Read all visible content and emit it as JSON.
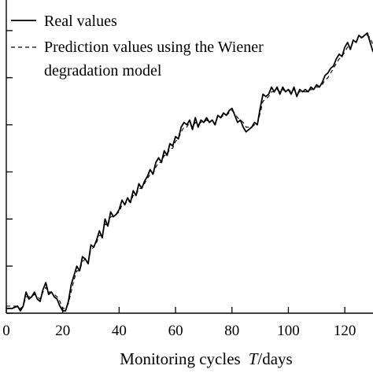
{
  "chart_data": {
    "type": "line",
    "title": "",
    "xlabel_prefix": "Monitoring cycles",
    "xlabel_var": "T",
    "xlabel_suffix": "/days",
    "ylabel": "",
    "xlim": [
      0,
      130
    ],
    "ylim": [
      0,
      0.133
    ],
    "x_ticks": [
      0,
      20,
      40,
      60,
      80,
      100,
      120
    ],
    "y_tick_values": [
      0,
      0.02,
      0.04,
      0.06,
      0.08,
      0.1,
      0.12
    ],
    "grid": false,
    "legend": "top-left",
    "series": [
      {
        "name": "Real values",
        "style": "solid",
        "x": [
          0,
          2,
          4,
          5,
          6,
          7,
          8,
          9,
          10,
          11,
          12,
          13,
          14,
          15,
          16,
          17,
          18,
          19,
          20,
          21,
          22,
          23,
          24,
          25,
          26,
          27,
          28,
          29,
          30,
          31,
          32,
          33,
          34,
          35,
          36,
          37,
          38,
          39,
          40,
          41,
          42,
          43,
          44,
          45,
          46,
          47,
          48,
          49,
          50,
          51,
          52,
          53,
          54,
          55,
          56,
          57,
          58,
          59,
          60,
          61,
          62,
          63,
          64,
          65,
          66,
          67,
          68,
          69,
          70,
          71,
          72,
          73,
          74,
          75,
          76,
          77,
          78,
          79,
          80,
          81,
          82,
          83,
          84,
          85,
          86,
          87,
          88,
          89,
          90,
          91,
          92,
          93,
          94,
          95,
          96,
          97,
          98,
          99,
          100,
          101,
          102,
          103,
          104,
          105,
          106,
          107,
          108,
          109,
          110,
          111,
          112,
          113,
          114,
          115,
          116,
          117,
          118,
          119,
          120,
          121,
          122,
          123,
          124,
          125,
          126,
          127,
          128,
          129,
          130
        ],
        "values": [
          0.002,
          0.002,
          0.003,
          0.001,
          0.003,
          0.009,
          0.006,
          0.007,
          0.009,
          0.006,
          0.005,
          0.01,
          0.013,
          0.008,
          0.009,
          0.007,
          0.006,
          0.003,
          0.001,
          0.001,
          0.005,
          0.012,
          0.016,
          0.02,
          0.018,
          0.024,
          0.023,
          0.021,
          0.029,
          0.028,
          0.031,
          0.035,
          0.032,
          0.04,
          0.037,
          0.043,
          0.041,
          0.042,
          0.044,
          0.048,
          0.046,
          0.049,
          0.047,
          0.052,
          0.05,
          0.055,
          0.053,
          0.056,
          0.058,
          0.061,
          0.059,
          0.064,
          0.066,
          0.064,
          0.069,
          0.067,
          0.072,
          0.071,
          0.075,
          0.074,
          0.079,
          0.081,
          0.08,
          0.082,
          0.078,
          0.083,
          0.079,
          0.082,
          0.081,
          0.083,
          0.081,
          0.082,
          0.08,
          0.084,
          0.083,
          0.085,
          0.084,
          0.086,
          0.087,
          0.084,
          0.081,
          0.082,
          0.079,
          0.077,
          0.078,
          0.079,
          0.081,
          0.08,
          0.087,
          0.093,
          0.092,
          0.093,
          0.096,
          0.094,
          0.096,
          0.093,
          0.096,
          0.094,
          0.095,
          0.093,
          0.096,
          0.092,
          0.095,
          0.094,
          0.095,
          0.094,
          0.096,
          0.095,
          0.097,
          0.096,
          0.098,
          0.101,
          0.102,
          0.104,
          0.105,
          0.108,
          0.11,
          0.109,
          0.113,
          0.115,
          0.112,
          0.116,
          0.115,
          0.118,
          0.117,
          0.118,
          0.119,
          0.115,
          0.111
        ],
        "color": "#000000"
      },
      {
        "name": "Prediction values using the Wiener degradation model",
        "name_line1": "Prediction values using the Wiener",
        "name_line2": "degradation model",
        "style": "dashed",
        "x": [
          0,
          2,
          4,
          5,
          6,
          7,
          8,
          9,
          10,
          11,
          12,
          13,
          14,
          15,
          16,
          17,
          18,
          19,
          20,
          21,
          22,
          23,
          24,
          25,
          26,
          27,
          28,
          29,
          30,
          31,
          32,
          33,
          34,
          35,
          36,
          37,
          38,
          39,
          40,
          41,
          42,
          43,
          44,
          45,
          46,
          47,
          48,
          49,
          50,
          51,
          52,
          53,
          54,
          55,
          56,
          57,
          58,
          59,
          60,
          61,
          62,
          63,
          64,
          65,
          66,
          67,
          68,
          69,
          70,
          71,
          72,
          73,
          74,
          75,
          76,
          77,
          78,
          79,
          80,
          81,
          82,
          83,
          84,
          85,
          86,
          87,
          88,
          89,
          90,
          91,
          92,
          93,
          94,
          95,
          96,
          97,
          98,
          99,
          100,
          101,
          102,
          103,
          104,
          105,
          106,
          107,
          108,
          109,
          110,
          111,
          112,
          113,
          114,
          115,
          116,
          117,
          118,
          119,
          120,
          121,
          122,
          123,
          124,
          125,
          126,
          127,
          128,
          129,
          130
        ],
        "values": [
          0.003,
          0.003,
          0.003,
          0.002,
          0.003,
          0.007,
          0.007,
          0.007,
          0.008,
          0.007,
          0.006,
          0.009,
          0.011,
          0.009,
          0.009,
          0.008,
          0.007,
          0.005,
          0.002,
          0.002,
          0.004,
          0.009,
          0.014,
          0.018,
          0.018,
          0.022,
          0.023,
          0.022,
          0.027,
          0.028,
          0.03,
          0.033,
          0.033,
          0.038,
          0.037,
          0.041,
          0.041,
          0.042,
          0.043,
          0.046,
          0.046,
          0.048,
          0.047,
          0.05,
          0.05,
          0.053,
          0.053,
          0.055,
          0.057,
          0.059,
          0.059,
          0.062,
          0.064,
          0.064,
          0.067,
          0.067,
          0.07,
          0.07,
          0.073,
          0.074,
          0.077,
          0.079,
          0.079,
          0.081,
          0.079,
          0.081,
          0.08,
          0.081,
          0.081,
          0.082,
          0.081,
          0.082,
          0.081,
          0.083,
          0.083,
          0.084,
          0.084,
          0.085,
          0.086,
          0.085,
          0.083,
          0.082,
          0.081,
          0.079,
          0.079,
          0.079,
          0.08,
          0.08,
          0.085,
          0.09,
          0.091,
          0.092,
          0.094,
          0.094,
          0.095,
          0.094,
          0.095,
          0.094,
          0.095,
          0.094,
          0.095,
          0.093,
          0.094,
          0.094,
          0.094,
          0.094,
          0.095,
          0.095,
          0.096,
          0.096,
          0.097,
          0.099,
          0.1,
          0.102,
          0.104,
          0.106,
          0.108,
          0.109,
          0.111,
          0.113,
          0.113,
          0.115,
          0.115,
          0.117,
          0.117,
          0.118,
          0.118,
          0.117,
          0.114
        ],
        "color": "#000000"
      }
    ]
  }
}
